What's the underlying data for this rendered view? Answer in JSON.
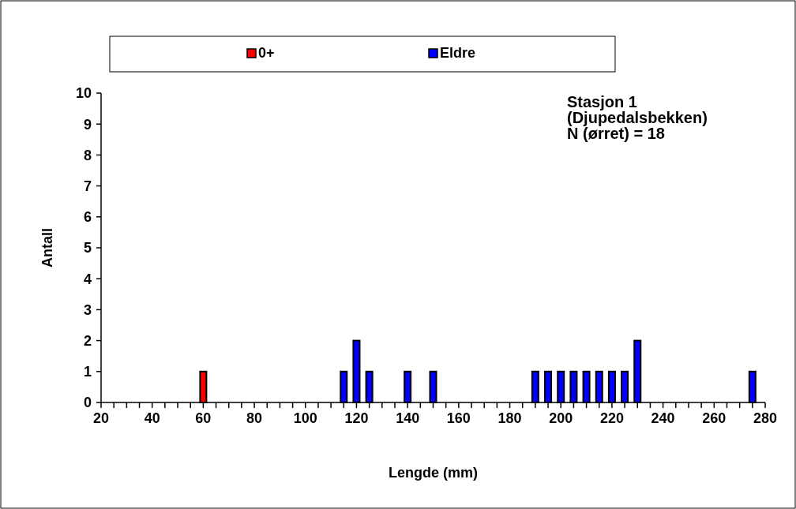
{
  "chart_data": {
    "type": "bar",
    "xlabel": "Lengde (mm)",
    "ylabel": "Antall",
    "annotations": [
      "Stasjon 1",
      "(Djupedalsbekken)",
      "N (ørret) = 18"
    ],
    "series": [
      {
        "name": "0+",
        "color": "#ff0000",
        "x": [
          60
        ],
        "values": [
          1
        ]
      },
      {
        "name": "Eldre",
        "color": "#0000ff",
        "x": [
          115,
          120,
          125,
          140,
          150,
          190,
          195,
          200,
          205,
          210,
          215,
          220,
          225,
          230,
          275
        ],
        "values": [
          1,
          2,
          1,
          1,
          1,
          1,
          1,
          1,
          1,
          1,
          1,
          1,
          1,
          2,
          1
        ]
      }
    ],
    "xlim": [
      20,
      280
    ],
    "xticks": [
      20,
      {
        "value": 25,
        "label": null
      },
      {
        "value": 30,
        "label": null
      },
      {
        "value": 35,
        "label": null
      },
      40,
      {
        "value": 45,
        "label": null
      },
      {
        "value": 50,
        "label": null
      },
      {
        "value": 55,
        "label": null
      },
      60,
      {
        "value": 65,
        "label": null
      },
      {
        "value": 70,
        "label": null
      },
      {
        "value": 75,
        "label": null
      },
      80,
      {
        "value": 85,
        "label": null
      },
      {
        "value": 90,
        "label": null
      },
      {
        "value": 95,
        "label": null
      },
      100,
      {
        "value": 105,
        "label": null
      },
      {
        "value": 110,
        "label": null
      },
      {
        "value": 115,
        "label": null
      },
      120,
      {
        "value": 125,
        "label": null
      },
      {
        "value": 130,
        "label": null
      },
      {
        "value": 135,
        "label": null
      },
      140,
      {
        "value": 145,
        "label": null
      },
      {
        "value": 150,
        "label": null
      },
      {
        "value": 155,
        "label": null
      },
      160,
      {
        "value": 165,
        "label": null
      },
      {
        "value": 170,
        "label": null
      },
      {
        "value": 175,
        "label": null
      },
      180,
      {
        "value": 185,
        "label": null
      },
      {
        "value": 190,
        "label": null
      },
      {
        "value": 195,
        "label": null
      },
      200,
      {
        "value": 205,
        "label": null
      },
      {
        "value": 210,
        "label": null
      },
      {
        "value": 215,
        "label": null
      },
      220,
      {
        "value": 225,
        "label": null
      },
      {
        "value": 230,
        "label": null
      },
      {
        "value": 235,
        "label": null
      },
      240,
      {
        "value": 245,
        "label": null
      },
      {
        "value": 250,
        "label": null
      },
      {
        "value": 255,
        "label": null
      },
      260,
      {
        "value": 265,
        "label": null
      },
      {
        "value": 270,
        "label": null
      },
      {
        "value": 275,
        "label": null
      },
      280
    ],
    "ylim": [
      0,
      10
    ],
    "yticks": [
      0,
      1,
      2,
      3,
      4,
      5,
      6,
      7,
      8,
      9,
      10
    ],
    "grid": false,
    "legend": "top"
  }
}
